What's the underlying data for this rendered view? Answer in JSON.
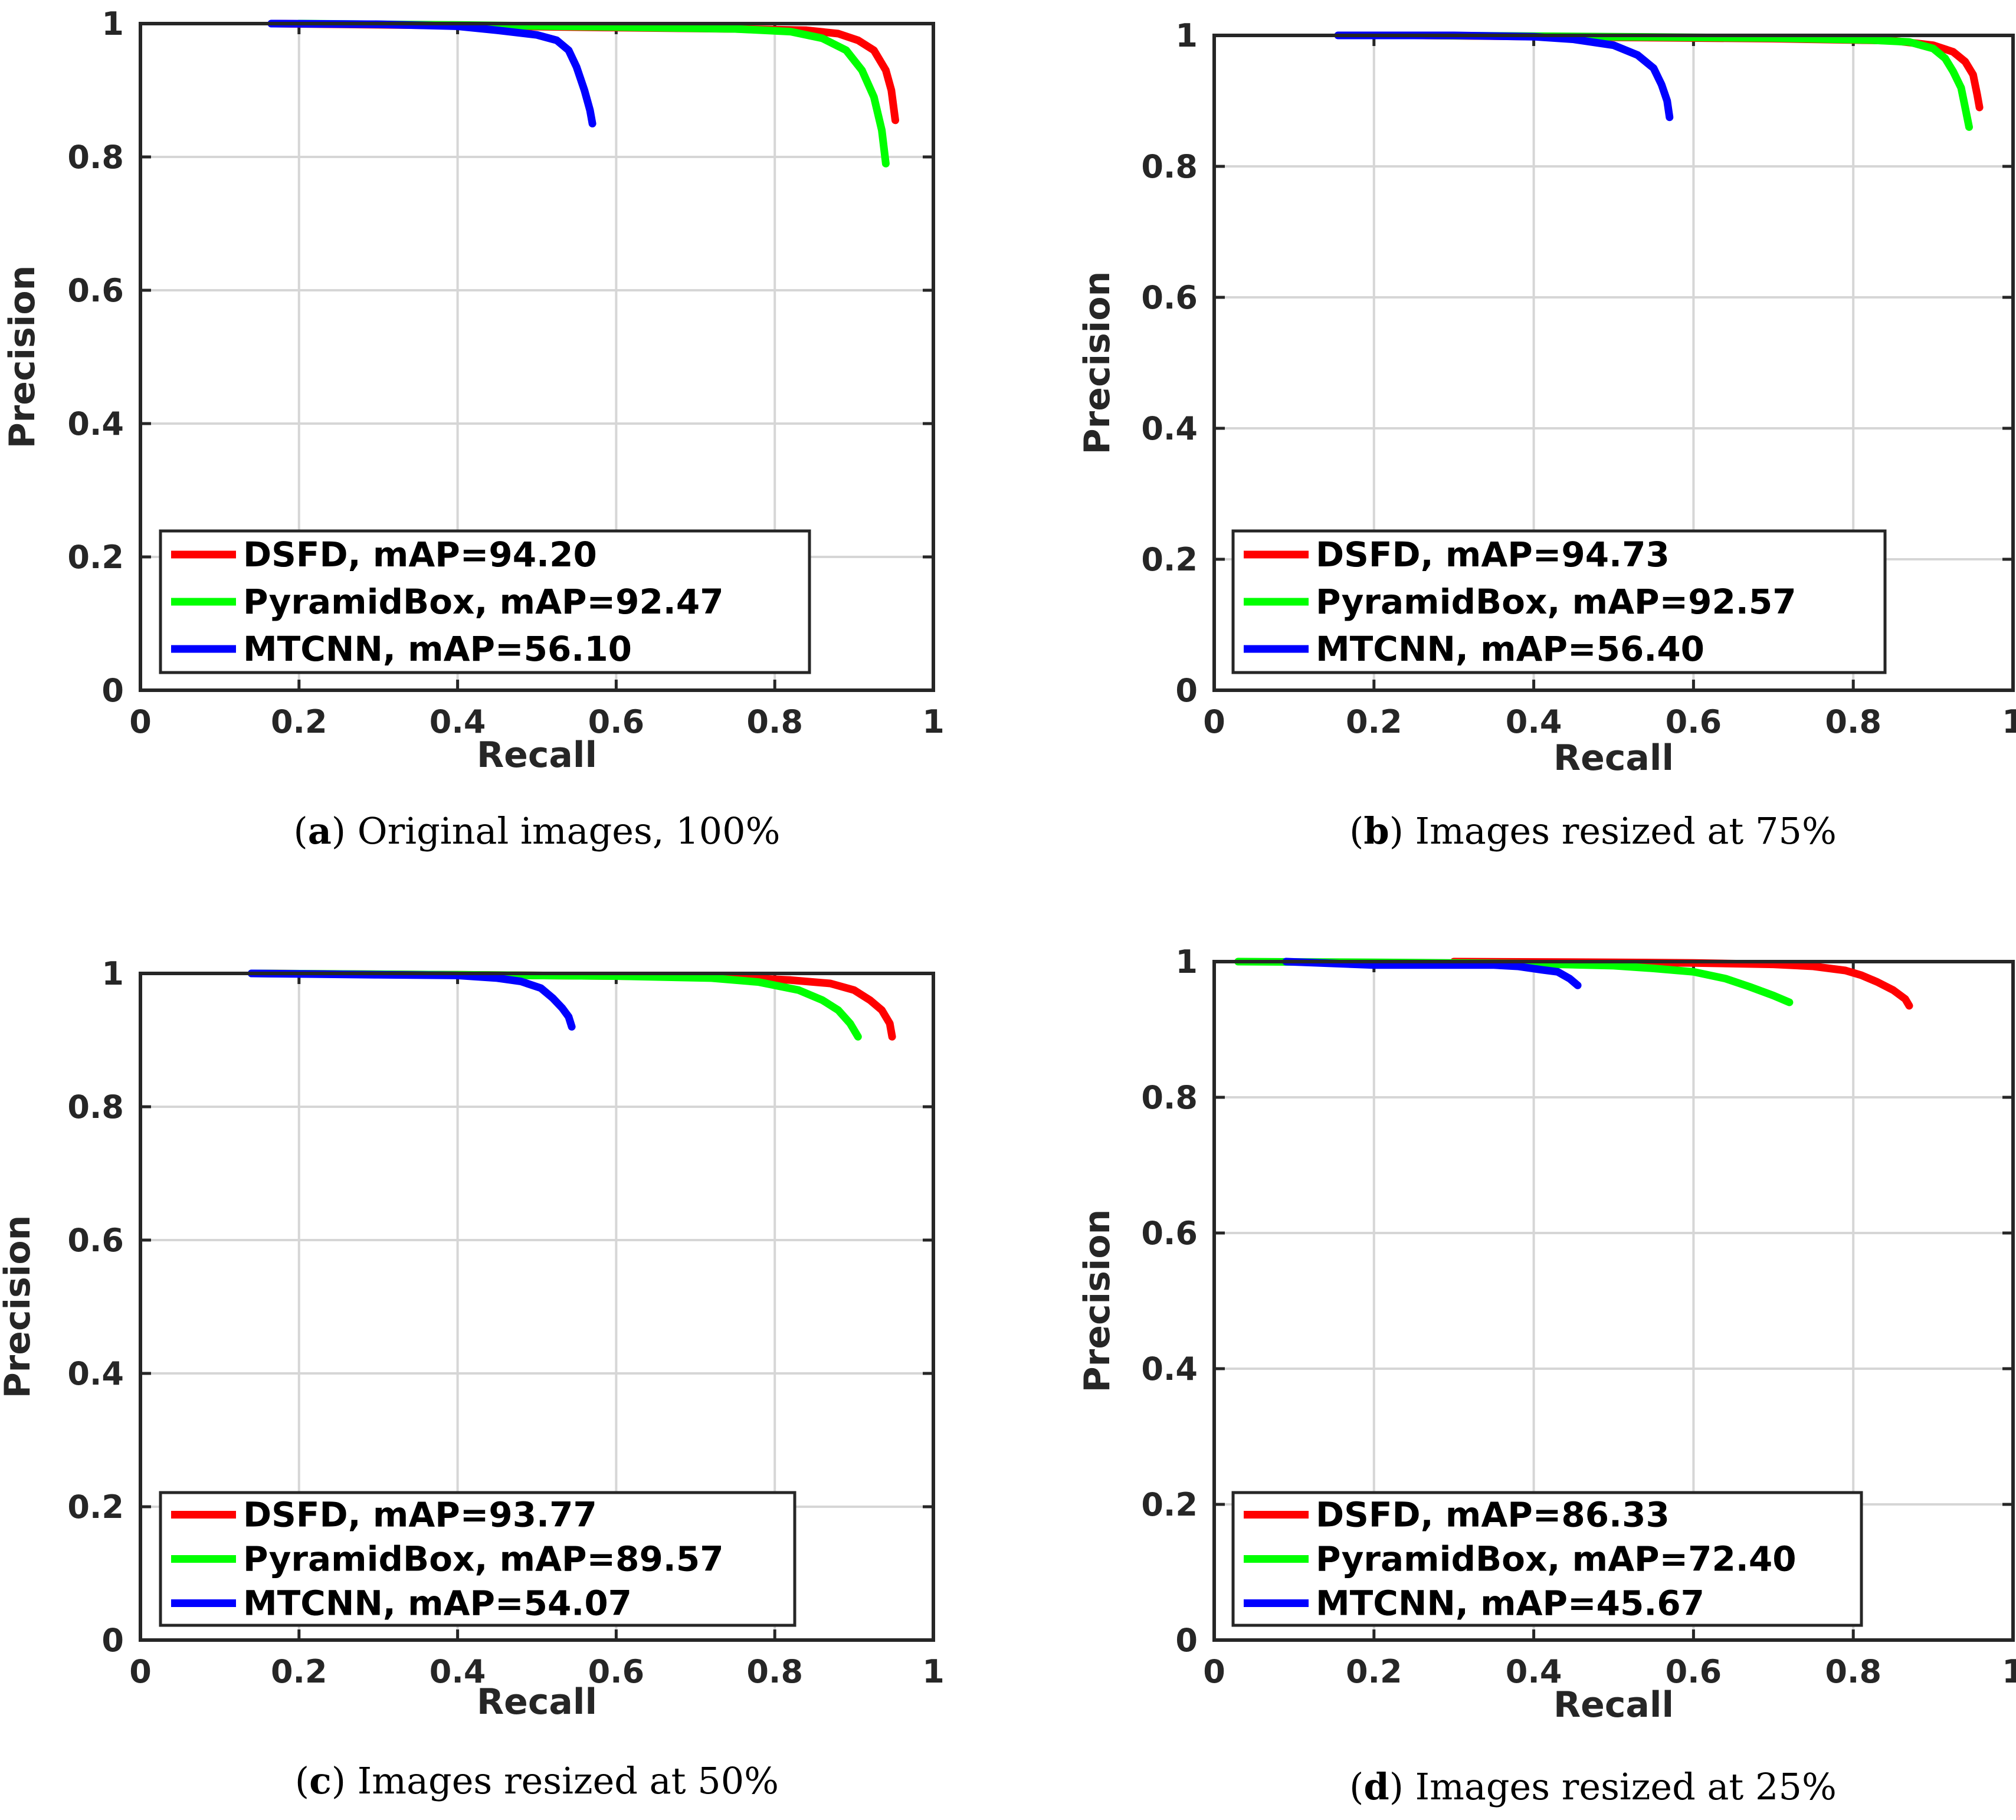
{
  "chart_data": [
    {
      "id": "a",
      "type": "line",
      "xlabel": "Recall",
      "ylabel": "Precision",
      "xlim": [
        0,
        1
      ],
      "ylim": [
        0,
        1
      ],
      "xticks": [
        "0",
        "0.2",
        "0.4",
        "0.6",
        "0.8",
        "1"
      ],
      "yticks": [
        "0",
        "0.2",
        "0.4",
        "0.6",
        "0.8",
        "1"
      ],
      "grid": true,
      "legend_position": "bottom-left",
      "caption": {
        "letter": "a",
        "text": " Original images, 100%"
      },
      "series": [
        {
          "name": "DSFD",
          "legend": "DSFD, mAP=94.20",
          "color": "#ff0000",
          "x": [
            0.17,
            0.4,
            0.6,
            0.75,
            0.84,
            0.88,
            0.905,
            0.925,
            0.94,
            0.947,
            0.952
          ],
          "y": [
            1.0,
            0.997,
            0.994,
            0.992,
            0.99,
            0.985,
            0.975,
            0.96,
            0.93,
            0.9,
            0.855
          ]
        },
        {
          "name": "PyramidBox",
          "legend": "PyramidBox, mAP=92.47",
          "color": "#00ff00",
          "x": [
            0.2,
            0.4,
            0.6,
            0.75,
            0.82,
            0.86,
            0.89,
            0.91,
            0.925,
            0.935,
            0.94
          ],
          "y": [
            1.0,
            0.998,
            0.995,
            0.992,
            0.988,
            0.978,
            0.96,
            0.93,
            0.89,
            0.84,
            0.79
          ]
        },
        {
          "name": "MTCNN",
          "legend": "MTCNN, mAP=56.10",
          "color": "#0000ff",
          "x": [
            0.165,
            0.3,
            0.4,
            0.45,
            0.5,
            0.525,
            0.54,
            0.55,
            0.56,
            0.567,
            0.57
          ],
          "y": [
            1.0,
            0.999,
            0.996,
            0.99,
            0.983,
            0.975,
            0.96,
            0.935,
            0.9,
            0.87,
            0.85
          ]
        }
      ]
    },
    {
      "id": "b",
      "type": "line",
      "xlabel": "Recall",
      "ylabel": "Precision",
      "xlim": [
        0,
        1
      ],
      "ylim": [
        0,
        1
      ],
      "xticks": [
        "0",
        "0.2",
        "0.4",
        "0.6",
        "0.8",
        "1"
      ],
      "yticks": [
        "0",
        "0.2",
        "0.4",
        "0.6",
        "0.8",
        "1"
      ],
      "grid": true,
      "legend_position": "bottom-left",
      "caption": {
        "letter": "b",
        "text": " Images resized at 75%"
      },
      "series": [
        {
          "name": "DSFD",
          "legend": "DSFD, mAP=94.73",
          "color": "#ff0000",
          "x": [
            0.25,
            0.5,
            0.7,
            0.85,
            0.9,
            0.925,
            0.94,
            0.95,
            0.955,
            0.958
          ],
          "y": [
            1.0,
            0.997,
            0.995,
            0.992,
            0.985,
            0.975,
            0.96,
            0.94,
            0.91,
            0.89
          ]
        },
        {
          "name": "PyramidBox",
          "legend": "PyramidBox, mAP=92.57",
          "color": "#00ff00",
          "x": [
            0.26,
            0.5,
            0.7,
            0.82,
            0.87,
            0.9,
            0.915,
            0.925,
            0.935,
            0.94,
            0.945
          ],
          "y": [
            1.0,
            0.998,
            0.996,
            0.993,
            0.99,
            0.98,
            0.965,
            0.945,
            0.92,
            0.89,
            0.86
          ]
        },
        {
          "name": "MTCNN",
          "legend": "MTCNN, mAP=56.40",
          "color": "#0000ff",
          "x": [
            0.155,
            0.3,
            0.4,
            0.45,
            0.5,
            0.53,
            0.55,
            0.56,
            0.567,
            0.57
          ],
          "y": [
            1.0,
            1.0,
            0.998,
            0.994,
            0.985,
            0.97,
            0.95,
            0.925,
            0.9,
            0.875
          ]
        }
      ]
    },
    {
      "id": "c",
      "type": "line",
      "xlabel": "Recall",
      "ylabel": "Precision",
      "xlim": [
        0,
        1
      ],
      "ylim": [
        0,
        1
      ],
      "xticks": [
        "0",
        "0.2",
        "0.4",
        "0.6",
        "0.8",
        "1"
      ],
      "yticks": [
        "0",
        "0.2",
        "0.4",
        "0.6",
        "0.8",
        "1"
      ],
      "grid": true,
      "legend_position": "bottom-left",
      "caption": {
        "letter": "c",
        "text": " Images resized at 50%"
      },
      "series": [
        {
          "name": "DSFD",
          "legend": "DSFD, mAP=93.77",
          "color": "#ff0000",
          "x": [
            0.15,
            0.4,
            0.6,
            0.75,
            0.82,
            0.87,
            0.9,
            0.92,
            0.935,
            0.945,
            0.948
          ],
          "y": [
            1.0,
            0.998,
            0.996,
            0.994,
            0.99,
            0.985,
            0.975,
            0.96,
            0.945,
            0.925,
            0.905
          ]
        },
        {
          "name": "PyramidBox",
          "legend": "PyramidBox, mAP=89.57",
          "color": "#00ff00",
          "x": [
            0.14,
            0.4,
            0.6,
            0.72,
            0.78,
            0.83,
            0.86,
            0.88,
            0.895,
            0.905
          ],
          "y": [
            1.0,
            0.998,
            0.996,
            0.993,
            0.987,
            0.975,
            0.96,
            0.945,
            0.925,
            0.905
          ]
        },
        {
          "name": "MTCNN",
          "legend": "MTCNN, mAP=54.07",
          "color": "#0000ff",
          "x": [
            0.14,
            0.3,
            0.4,
            0.45,
            0.48,
            0.505,
            0.52,
            0.532,
            0.54,
            0.544
          ],
          "y": [
            1.0,
            0.998,
            0.997,
            0.993,
            0.988,
            0.978,
            0.963,
            0.948,
            0.935,
            0.92
          ]
        }
      ]
    },
    {
      "id": "d",
      "type": "line",
      "xlabel": "Recall",
      "ylabel": "Precision",
      "xlim": [
        0,
        1
      ],
      "ylim": [
        0,
        1
      ],
      "xticks": [
        "0",
        "0.2",
        "0.4",
        "0.6",
        "0.8",
        "1"
      ],
      "yticks": [
        "0",
        "0.2",
        "0.4",
        "0.6",
        "0.8",
        "1"
      ],
      "grid": true,
      "legend_position": "bottom-left",
      "caption": {
        "letter": "d",
        "text": " Images resized at 25%"
      },
      "series": [
        {
          "name": "DSFD",
          "legend": "DSFD, mAP=86.33",
          "color": "#ff0000",
          "x": [
            0.3,
            0.5,
            0.6,
            0.7,
            0.75,
            0.79,
            0.81,
            0.83,
            0.85,
            0.865,
            0.87
          ],
          "y": [
            1.0,
            0.999,
            0.998,
            0.996,
            0.993,
            0.987,
            0.98,
            0.97,
            0.958,
            0.945,
            0.935
          ]
        },
        {
          "name": "PyramidBox",
          "legend": "PyramidBox, mAP=72.40",
          "color": "#00ff00",
          "x": [
            0.03,
            0.2,
            0.4,
            0.5,
            0.55,
            0.6,
            0.64,
            0.67,
            0.7,
            0.72
          ],
          "y": [
            1.0,
            0.999,
            0.997,
            0.994,
            0.99,
            0.985,
            0.975,
            0.963,
            0.95,
            0.94
          ]
        },
        {
          "name": "MTCNN",
          "legend": "MTCNN, mAP=45.67",
          "color": "#0000ff",
          "x": [
            0.09,
            0.2,
            0.3,
            0.35,
            0.38,
            0.41,
            0.43,
            0.445,
            0.455
          ],
          "y": [
            1.0,
            0.995,
            0.995,
            0.995,
            0.993,
            0.988,
            0.985,
            0.975,
            0.965
          ]
        }
      ]
    }
  ]
}
